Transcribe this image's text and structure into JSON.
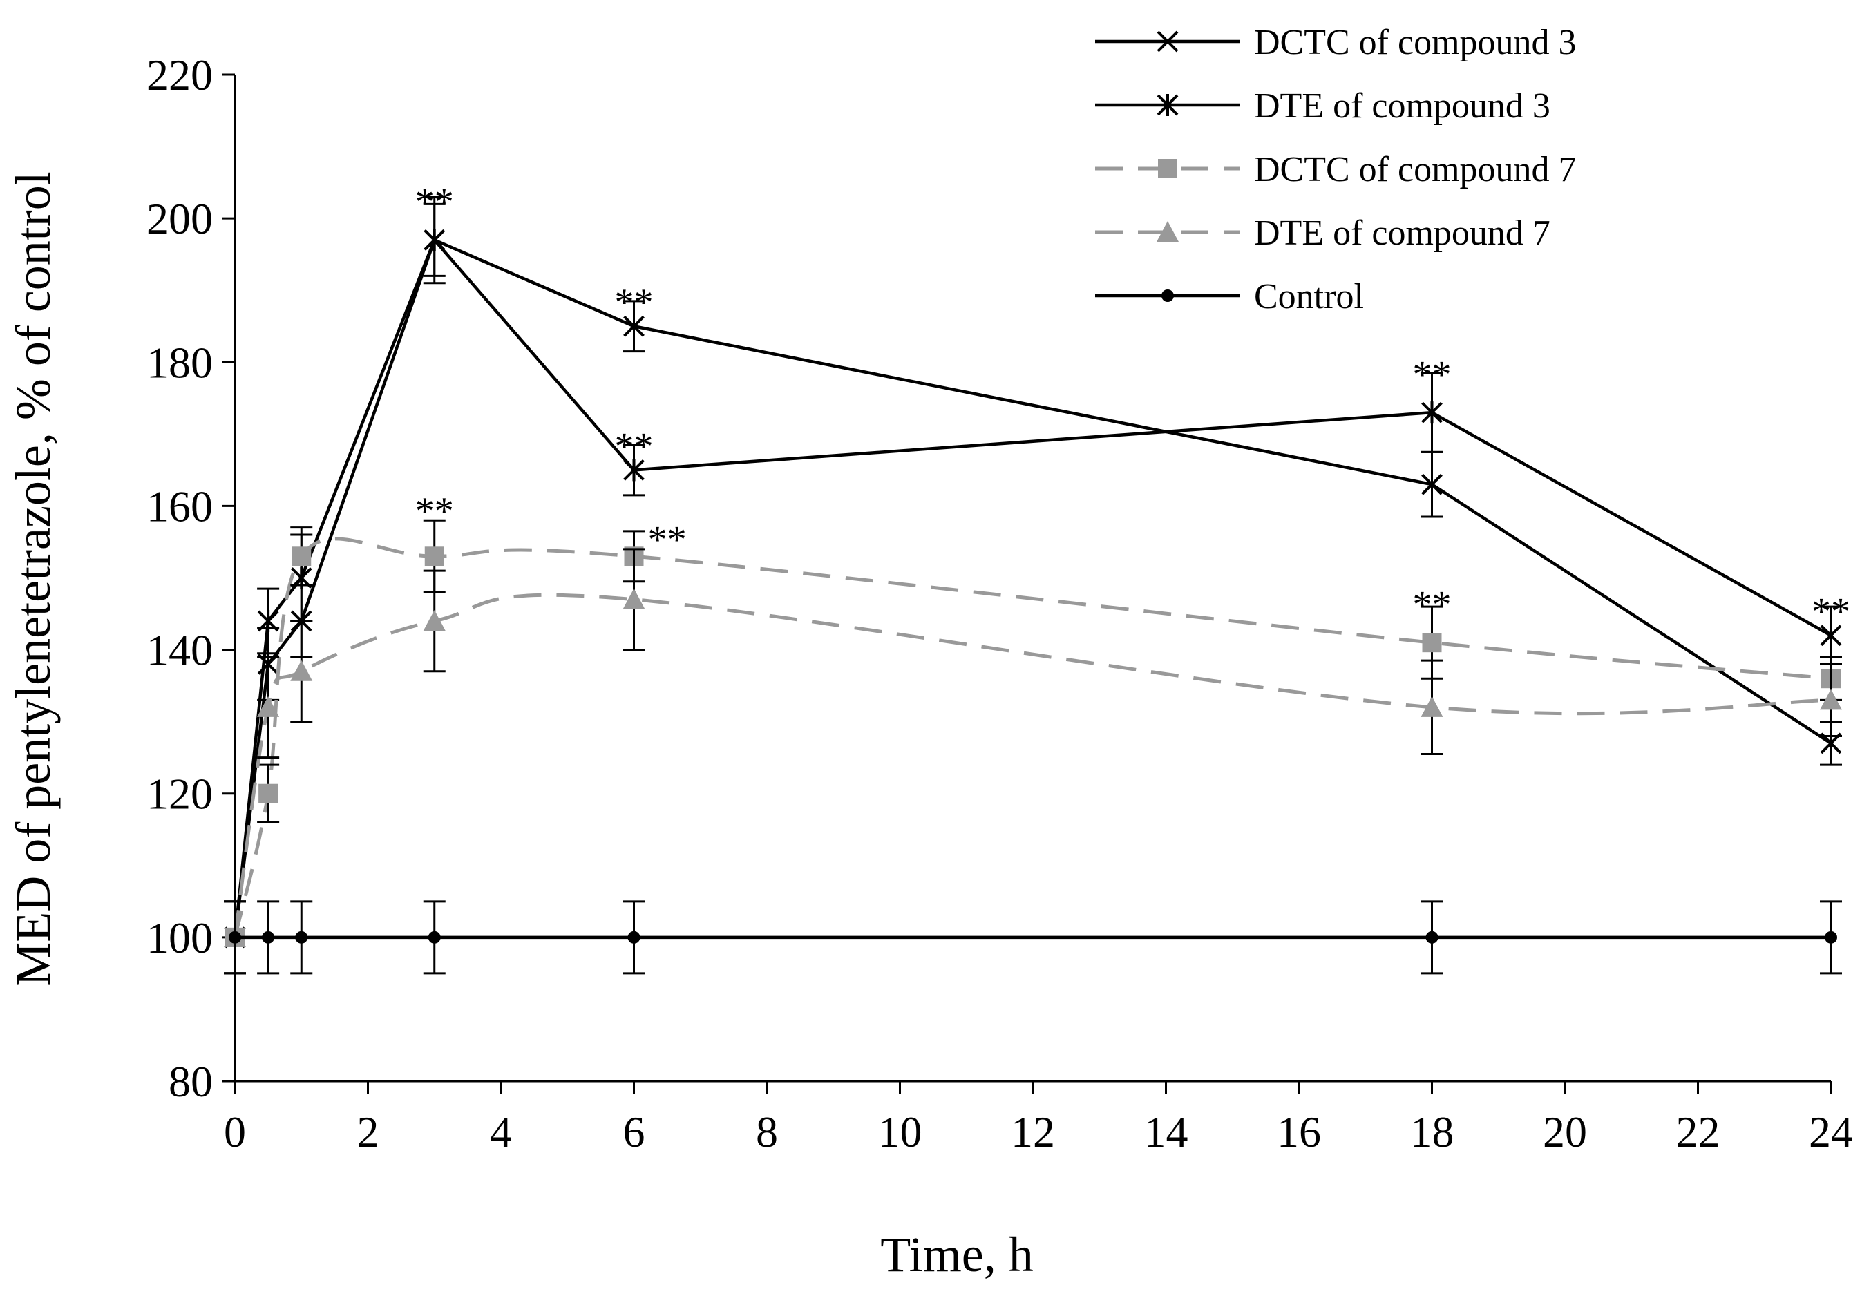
{
  "chart_data": {
    "type": "line",
    "title": "",
    "xlabel": "Time, h",
    "ylabel": "MED of pentylenetetrazole, % of control",
    "xlim": [
      0,
      24
    ],
    "ylim": [
      80,
      220
    ],
    "x_ticks": [
      "0",
      "2",
      "4",
      "6",
      "8",
      "10",
      "12",
      "14",
      "16",
      "18",
      "20",
      "22",
      "24"
    ],
    "y_ticks": [
      "80",
      "100",
      "120",
      "140",
      "160",
      "180",
      "200",
      "220"
    ],
    "grid": false,
    "legend_position": "top-right",
    "series": [
      {
        "name": "DCTC of compound 3",
        "color": "#000000",
        "dash": "solid",
        "marker": "x",
        "points": [
          {
            "x": 0,
            "y": 100,
            "err": 5
          },
          {
            "x": 0.5,
            "y": 138,
            "err": 5
          },
          {
            "x": 1,
            "y": 144,
            "err": 5
          },
          {
            "x": 3,
            "y": 197,
            "err": 6
          },
          {
            "x": 6,
            "y": 185,
            "err": 3.5
          },
          {
            "x": 18,
            "y": 163,
            "err": 4.5
          },
          {
            "x": 24,
            "y": 127,
            "err": 3
          }
        ]
      },
      {
        "name": "DTE of compound 3",
        "color": "#000000",
        "dash": "solid",
        "marker": "star",
        "points": [
          {
            "x": 0,
            "y": 100,
            "err": 5
          },
          {
            "x": 0.5,
            "y": 144,
            "err": 4.5
          },
          {
            "x": 1,
            "y": 150,
            "err": 6
          },
          {
            "x": 3,
            "y": 197,
            "err": 5
          },
          {
            "x": 6,
            "y": 165,
            "err": 3.5
          },
          {
            "x": 18,
            "y": 173,
            "err": 5.5
          },
          {
            "x": 24,
            "y": 142,
            "err": 4
          }
        ]
      },
      {
        "name": "DCTC of compound 7",
        "color": "#999999",
        "dash": "dashed",
        "marker": "square",
        "points": [
          {
            "x": 0,
            "y": 100,
            "err": 5
          },
          {
            "x": 0.5,
            "y": 120,
            "err": 4
          },
          {
            "x": 1,
            "y": 153,
            "err": 4
          },
          {
            "x": 3,
            "y": 153,
            "err": 5
          },
          {
            "x": 6,
            "y": 153,
            "err": 3.5
          },
          {
            "x": 18,
            "y": 141,
            "err": 5
          },
          {
            "x": 24,
            "y": 136,
            "err": 3
          }
        ]
      },
      {
        "name": "DTE of compound 7",
        "color": "#999999",
        "dash": "dashed",
        "marker": "triangle",
        "points": [
          {
            "x": 0,
            "y": 100,
            "err": 5
          },
          {
            "x": 0.5,
            "y": 132,
            "err": 7
          },
          {
            "x": 1,
            "y": 137,
            "err": 7
          },
          {
            "x": 3,
            "y": 144,
            "err": 7
          },
          {
            "x": 6,
            "y": 147,
            "err": 7
          },
          {
            "x": 18,
            "y": 132,
            "err": 6.5
          },
          {
            "x": 24,
            "y": 133,
            "err": 5
          }
        ]
      },
      {
        "name": "Control",
        "color": "#000000",
        "dash": "solid",
        "marker": "circle",
        "points": [
          {
            "x": 0,
            "y": 100,
            "err": 5
          },
          {
            "x": 0.5,
            "y": 100,
            "err": 5
          },
          {
            "x": 1,
            "y": 100,
            "err": 5
          },
          {
            "x": 3,
            "y": 100,
            "err": 5
          },
          {
            "x": 6,
            "y": 100,
            "err": 5
          },
          {
            "x": 18,
            "y": 100,
            "err": 5
          },
          {
            "x": 24,
            "y": 100,
            "err": 5
          }
        ]
      }
    ],
    "annotations": [
      {
        "text": "**",
        "x": 3,
        "y": 204
      },
      {
        "text": "**",
        "x": 6,
        "y": 190
      },
      {
        "text": "**",
        "x": 6,
        "y": 170
      },
      {
        "text": "**",
        "x": 3,
        "y": 161
      },
      {
        "text": "**",
        "x": 6.5,
        "y": 157
      },
      {
        "text": "**",
        "x": 18,
        "y": 180
      },
      {
        "text": "**",
        "x": 18,
        "y": 148
      },
      {
        "text": "**",
        "x": 24,
        "y": 147
      }
    ]
  }
}
